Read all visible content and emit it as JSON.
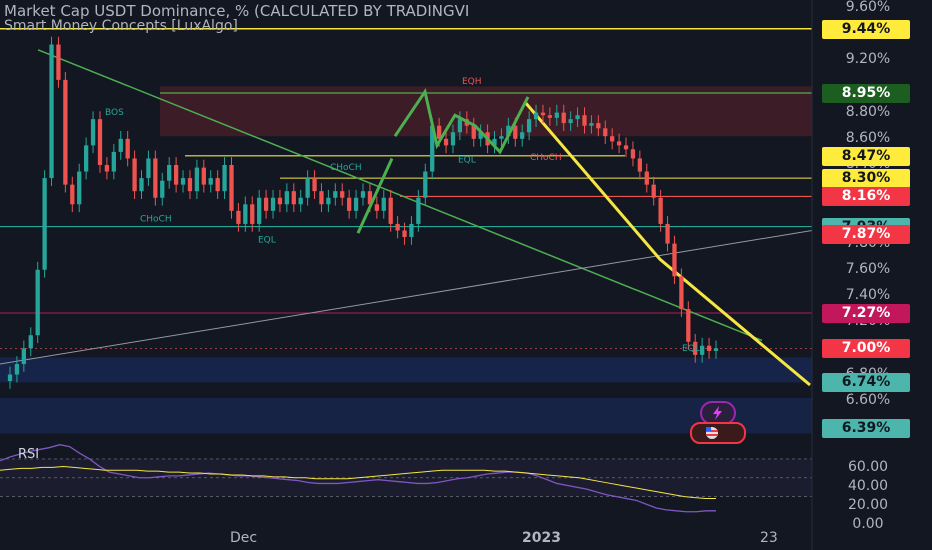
{
  "header": {
    "title": "Market Cap USDT Dominance, % (CALCULATED BY TRADINGVI",
    "indicator": "Smart Money Concepts [LuxAlgo]"
  },
  "rsi_pane": {
    "label": "RSI"
  },
  "colors": {
    "background": "#131722",
    "up": "#26a69a",
    "down": "#ef5350",
    "green_line": "#4caf50",
    "yellow_line": "#f5e642",
    "purple_rsi": "#7e57c2"
  },
  "icons": [
    "lightning-icon",
    "us-flag-icon"
  ],
  "chart_data": [
    {
      "type": "candlestick",
      "title": "Market Cap USDT Dominance, % (CALCULATED BY TRADINGVI",
      "y_axis_ticks": [
        "9.60%",
        "9.20%",
        "8.80%",
        "8.60%",
        "8.40%",
        "7.80%",
        "7.60%",
        "7.40%",
        "7.20%",
        "6.80%",
        "6.60%"
      ],
      "ylim": [
        6.3,
        9.66
      ],
      "x_axis_ticks": [
        "Dec",
        "2023",
        "23"
      ],
      "price_badges": [
        {
          "label": "9.44%",
          "value": 9.44,
          "style": "yellow"
        },
        {
          "label": "8.95%",
          "value": 8.95,
          "style": "green"
        },
        {
          "label": "8.47%",
          "value": 8.47,
          "style": "yellow"
        },
        {
          "label": "8.30%",
          "value": 8.3,
          "style": "yellow"
        },
        {
          "label": "8.16%",
          "value": 8.16,
          "style": "red"
        },
        {
          "label": "7.93%",
          "value": 7.93,
          "style": "teal"
        },
        {
          "label": "7.87%",
          "value": 7.87,
          "style": "red"
        },
        {
          "label": "7.27%",
          "value": 7.27,
          "style": "pink"
        },
        {
          "label": "7.00%",
          "value": 7.0,
          "style": "red"
        },
        {
          "label": "6.74%",
          "value": 6.74,
          "style": "teal"
        },
        {
          "label": "6.39%",
          "value": 6.39,
          "style": "teal"
        }
      ],
      "annotations": [
        "BOS",
        "EQL",
        "EQL",
        "EQH",
        "CHoCH",
        "CHoCH",
        "EQL",
        "CHoCH"
      ],
      "closes": [
        6.8,
        6.88,
        7.0,
        7.1,
        7.6,
        8.3,
        9.32,
        9.05,
        8.25,
        8.1,
        8.35,
        8.55,
        8.75,
        8.4,
        8.35,
        8.5,
        8.6,
        8.45,
        8.2,
        8.3,
        8.45,
        8.15,
        8.28,
        8.4,
        8.25,
        8.3,
        8.2,
        8.38,
        8.25,
        8.3,
        8.2,
        8.4,
        8.05,
        7.95,
        8.1,
        7.95,
        8.15,
        8.05,
        8.15,
        8.1,
        8.2,
        8.1,
        8.15,
        8.3,
        8.2,
        8.1,
        8.15,
        8.2,
        8.15,
        8.05,
        8.15,
        8.2,
        8.1,
        8.05,
        8.15,
        7.95,
        7.9,
        7.85,
        7.95,
        8.15,
        8.35,
        8.7,
        8.6,
        8.55,
        8.65,
        8.75,
        8.7,
        8.6,
        8.65,
        8.55,
        8.6,
        8.62,
        8.7,
        8.6,
        8.65,
        8.75,
        8.8,
        8.78,
        8.76,
        8.8,
        8.72,
        8.75,
        8.78,
        8.7,
        8.72,
        8.68,
        8.62,
        8.58,
        8.55,
        8.52,
        8.45,
        8.35,
        8.25,
        8.15,
        7.95,
        7.8,
        7.55,
        7.3,
        7.05,
        6.95,
        7.02,
        6.98,
        7.0
      ]
    },
    {
      "type": "line",
      "title": "RSI",
      "y_axis_ticks": [
        "60.00",
        "40.00",
        "20.00",
        "0.00"
      ],
      "ylim": [
        0,
        90
      ],
      "series": [
        {
          "values": [
            68,
            72,
            75,
            78,
            80,
            82,
            85,
            83,
            76,
            70,
            62,
            56,
            54,
            52,
            50,
            50,
            51,
            52,
            52,
            53,
            54,
            55,
            54,
            53,
            52,
            52,
            51,
            50,
            49,
            48,
            47,
            45,
            44,
            44,
            44,
            45,
            46,
            47,
            48,
            47,
            46,
            45,
            44,
            44,
            45,
            47,
            49,
            50,
            52,
            54,
            55,
            56,
            56,
            55,
            52,
            48,
            44,
            42,
            40,
            38,
            35,
            32,
            30,
            28,
            26,
            22,
            18,
            16,
            15,
            14,
            14,
            15,
            15
          ]
        },
        {
          "values": [
            58,
            59,
            60,
            60,
            61,
            61,
            62,
            61,
            60,
            59,
            58,
            58,
            58,
            58,
            57,
            57,
            56,
            56,
            55,
            55,
            54,
            54,
            53,
            53,
            52,
            52,
            51,
            51,
            50,
            50,
            49,
            49,
            49,
            49,
            50,
            51,
            52,
            53,
            54,
            55,
            56,
            57,
            58,
            58,
            58,
            58,
            58,
            57,
            57,
            56,
            55,
            54,
            53,
            52,
            51,
            50,
            48,
            46,
            44,
            42,
            40,
            38,
            36,
            34,
            32,
            30,
            29,
            28,
            28
          ]
        }
      ]
    }
  ]
}
